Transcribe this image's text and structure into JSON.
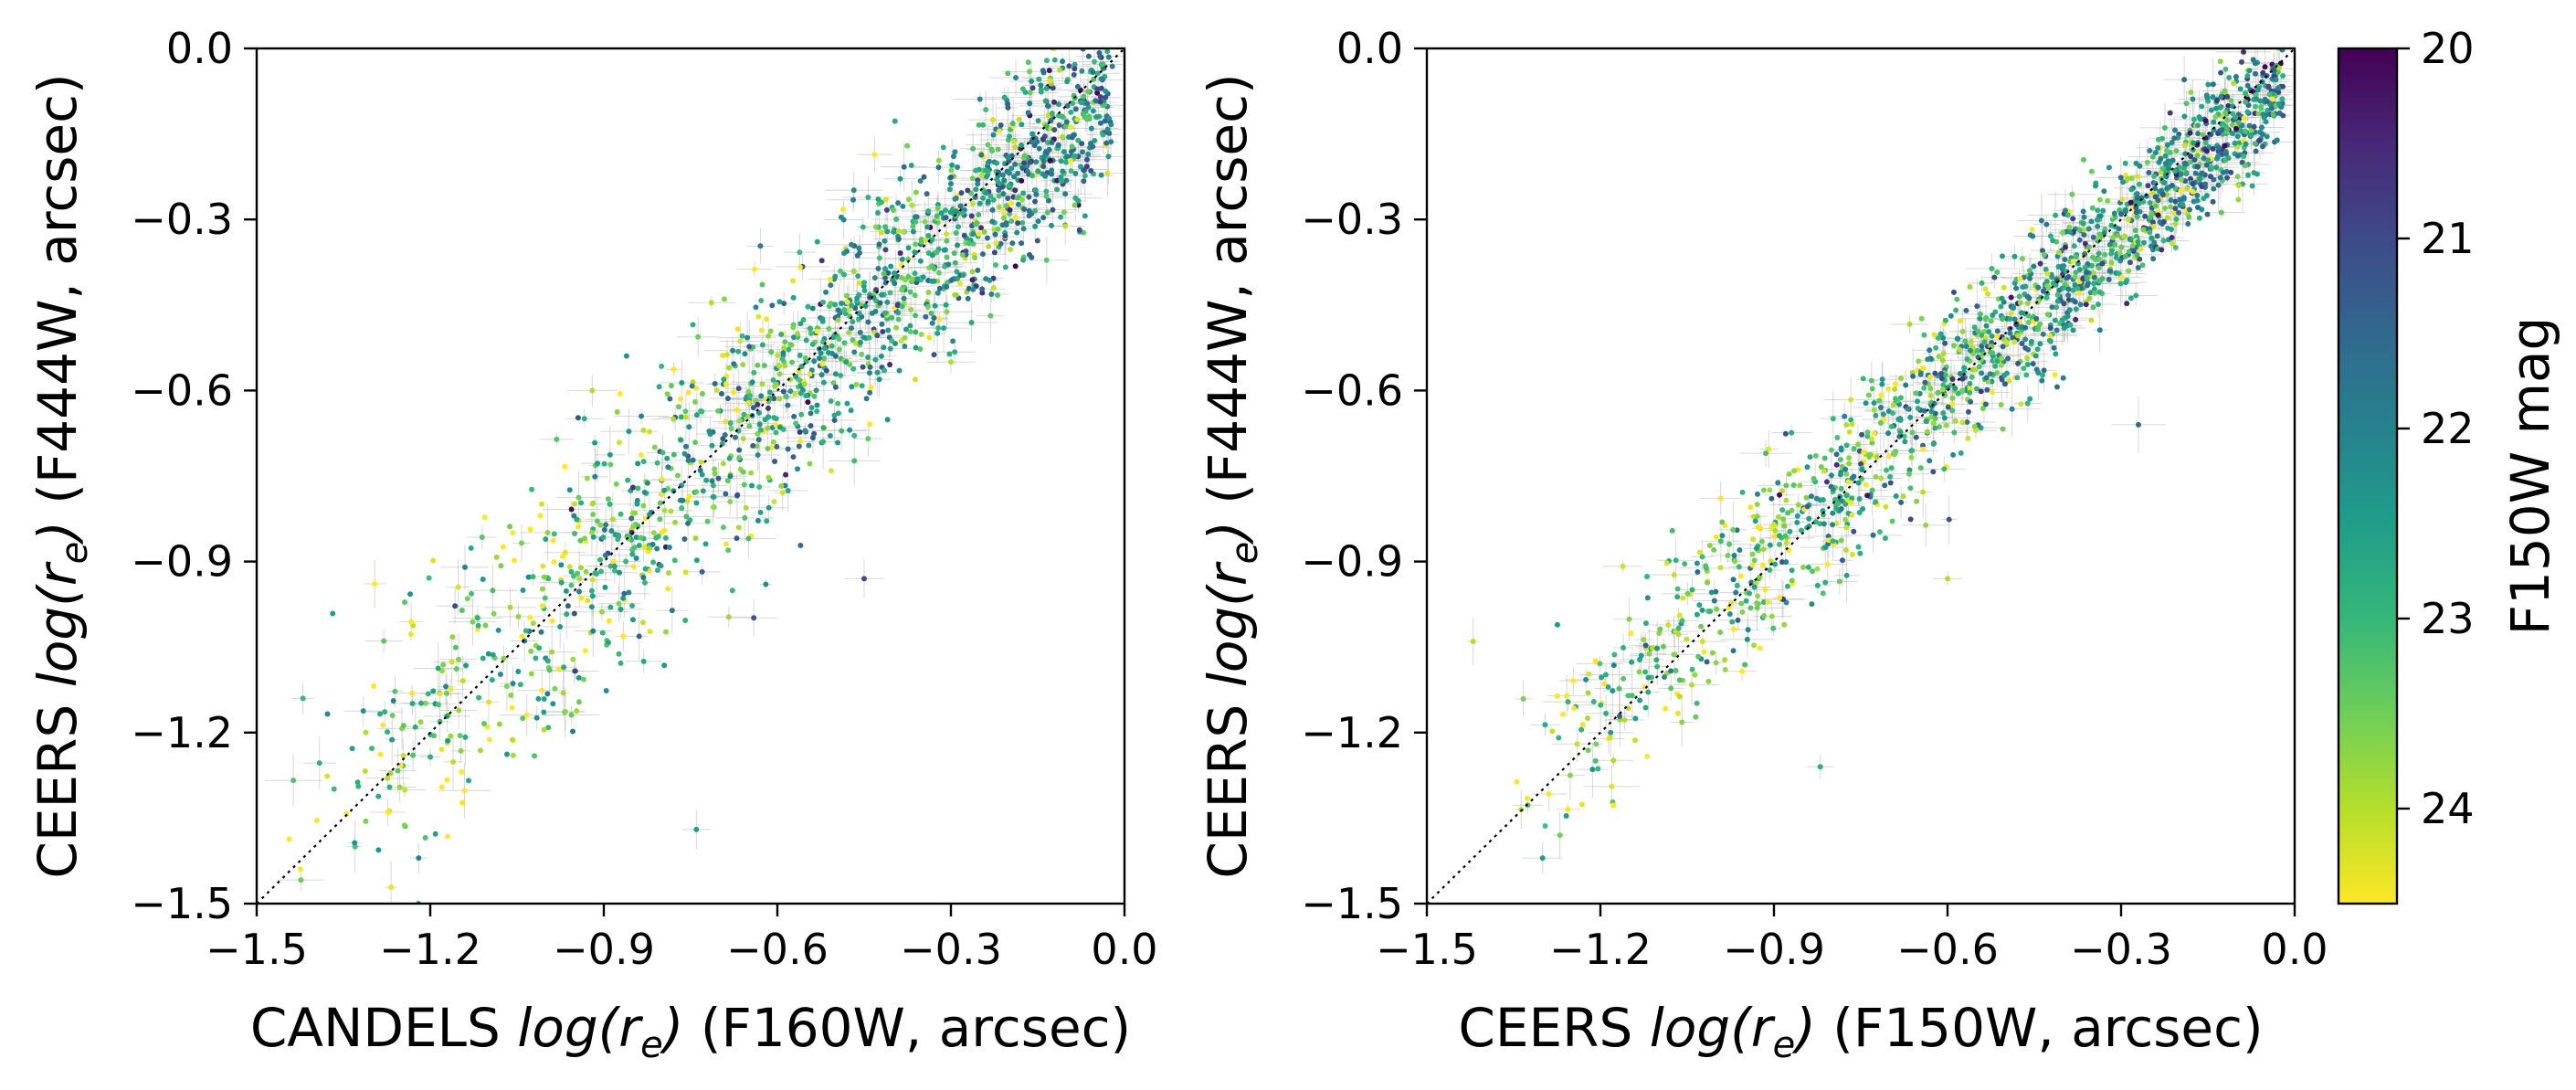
{
  "chart_data": [
    {
      "type": "scatter",
      "panel": "left",
      "xlabel": {
        "prefix": "CANDELS ",
        "func": "log(",
        "var": "r",
        "sub": "e",
        "close": ")",
        "suffix": " (F160W, arcsec)"
      },
      "ylabel": {
        "prefix": "CEERS ",
        "func": "log(",
        "var": "r",
        "sub": "e",
        "close": ")",
        "suffix": " (F444W, arcsec)"
      },
      "xlim": [
        -1.5,
        0.0
      ],
      "ylim": [
        -1.5,
        0.0
      ],
      "xticks": [
        -1.5,
        -1.2,
        -0.9,
        -0.6,
        -0.3,
        0.0
      ],
      "yticks": [
        -1.5,
        -1.2,
        -0.9,
        -0.6,
        -0.3,
        0.0
      ],
      "xtick_labels": [
        "−1.5",
        "−1.2",
        "−0.9",
        "−0.6",
        "−0.3",
        "0.0"
      ],
      "ytick_labels": [
        "−1.5",
        "−1.2",
        "−0.9",
        "−0.6",
        "−0.3",
        "0.0"
      ],
      "one_to_one_line": true,
      "point_count": 1700,
      "relation": {
        "slope": 0.93,
        "intercept": -0.05,
        "scatter": 0.075,
        "x_range": [
          -1.45,
          -0.02
        ]
      },
      "outliers": [
        {
          "x": -1.42,
          "y": -1.14,
          "mag": 23.0
        },
        {
          "x": -0.74,
          "y": -1.37,
          "mag": 22.5
        },
        {
          "x": -1.14,
          "y": -0.91,
          "mag": 22.0
        },
        {
          "x": -0.92,
          "y": -0.6,
          "mag": 24.0
        },
        {
          "x": -1.22,
          "y": -1.42,
          "mag": 22.0
        },
        {
          "x": -1.33,
          "y": -1.4,
          "mag": 23.2
        },
        {
          "x": -0.62,
          "y": -0.94,
          "mag": 22.2
        },
        {
          "x": -0.45,
          "y": -0.93,
          "mag": 21.0
        },
        {
          "x": -0.3,
          "y": -0.55,
          "mag": 24.0
        }
      ]
    },
    {
      "type": "scatter",
      "panel": "right",
      "xlabel": {
        "prefix": "CEERS ",
        "func": "log(",
        "var": "r",
        "sub": "e",
        "close": ")",
        "suffix": " (F150W, arcsec)"
      },
      "ylabel": {
        "prefix": "CEERS ",
        "func": "log(",
        "var": "r",
        "sub": "e",
        "close": ")",
        "suffix": " (F444W, arcsec)"
      },
      "xlim": [
        -1.5,
        0.0
      ],
      "ylim": [
        -1.5,
        0.0
      ],
      "xticks": [
        -1.5,
        -1.2,
        -0.9,
        -0.6,
        -0.3,
        0.0
      ],
      "yticks": [
        -1.5,
        -1.2,
        -0.9,
        -0.6,
        -0.3,
        0.0
      ],
      "xtick_labels": [
        "−1.5",
        "−1.2",
        "−0.9",
        "−0.6",
        "−0.3",
        "0.0"
      ],
      "ytick_labels": [
        "−1.5",
        "−1.2",
        "−0.9",
        "−0.6",
        "−0.3",
        "0.0"
      ],
      "one_to_one_line": true,
      "point_count": 1700,
      "relation": {
        "slope": 0.93,
        "intercept": -0.04,
        "scatter": 0.05,
        "x_range": [
          -1.35,
          -0.02
        ]
      },
      "outliers": [
        {
          "x": -1.42,
          "y": -1.04,
          "mag": 24.0
        },
        {
          "x": -0.82,
          "y": -1.26,
          "mag": 22.8
        },
        {
          "x": -0.27,
          "y": -0.66,
          "mag": 21.5
        },
        {
          "x": -0.6,
          "y": -0.93,
          "mag": 24.0
        },
        {
          "x": -1.3,
          "y": -1.42,
          "mag": 22.5
        },
        {
          "x": -1.27,
          "y": -1.38,
          "mag": 23.5
        }
      ]
    }
  ],
  "colorbar": {
    "label": "F150W mag",
    "colormap": "viridis",
    "reversed": true,
    "range": [
      20,
      24.5
    ],
    "ticks": [
      20,
      21,
      22,
      23,
      24
    ],
    "tick_labels": [
      "20",
      "21",
      "22",
      "23",
      "24"
    ],
    "colors": [
      "#440154",
      "#482878",
      "#3e4a89",
      "#31688e",
      "#26828e",
      "#1f9e89",
      "#35b779",
      "#6ece58",
      "#b5de2b",
      "#fde725"
    ]
  }
}
